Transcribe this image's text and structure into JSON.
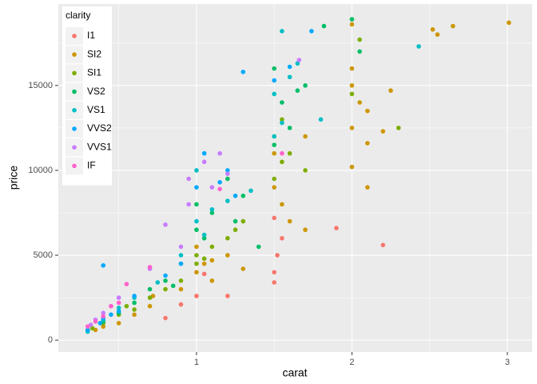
{
  "chart_data": {
    "type": "scatter",
    "x_label": "carat",
    "y_label": "price",
    "legend_title": "clarity",
    "xlim": [
      0.111,
      3.16
    ],
    "ylim": [
      -700,
      19800
    ],
    "xticks": [
      1,
      2,
      3
    ],
    "yticks": [
      0,
      5000,
      10000,
      15000
    ],
    "grid": true,
    "legend_position": "top-left",
    "series": [
      {
        "name": "I1",
        "color": "#F8766D",
        "x": [
          1.5,
          1.5,
          1.52,
          1.55,
          0.9,
          1.2,
          2.2,
          1.9,
          1.0,
          0.8,
          1.5,
          1.05
        ],
        "values": [
          3400,
          4000,
          5000,
          6000,
          2100,
          2600,
          5600,
          6600,
          2600,
          1300,
          7200,
          3900
        ]
      },
      {
        "name": "SI2",
        "color": "#CD9600",
        "x": [
          2.65,
          2.52,
          2.55,
          2.0,
          2.0,
          2.0,
          2.05,
          2.1,
          2.0,
          2.0,
          2.1,
          2.2,
          1.7,
          1.5,
          1.5,
          1.55,
          1.6,
          1.2,
          1.05,
          1.0,
          1.1,
          0.9,
          0.7,
          0.6,
          0.5,
          0.35,
          0.4,
          1.3,
          1.0,
          2.1,
          1.7,
          2.25,
          3.01,
          0.72,
          1.1
        ],
        "values": [
          18500,
          18300,
          18000,
          18600,
          16000,
          15000,
          14000,
          13500,
          12500,
          10200,
          11600,
          12300,
          12000,
          11000,
          9000,
          8000,
          7000,
          5000,
          4500,
          4000,
          3500,
          3000,
          2000,
          1500,
          1000,
          600,
          800,
          4200,
          5500,
          9000,
          6500,
          14700,
          18700,
          2600,
          4700
        ]
      },
      {
        "name": "SI1",
        "color": "#7CAE00",
        "x": [
          2.3,
          2.05,
          1.55,
          1.5,
          1.6,
          1.55,
          1.7,
          1.2,
          1.0,
          1.0,
          1.1,
          0.9,
          0.8,
          0.7,
          0.55,
          0.5,
          0.4,
          0.33,
          1.3,
          1.25,
          2.0,
          1.5,
          0.6,
          1.05
        ],
        "values": [
          12500,
          17700,
          10500,
          9500,
          11000,
          13000,
          10000,
          6000,
          5000,
          4500,
          5500,
          3500,
          3000,
          2500,
          2000,
          1500,
          1000,
          700,
          7000,
          6500,
          14500,
          12000,
          1800,
          4800
        ]
      },
      {
        "name": "VS2",
        "color": "#00BE67",
        "x": [
          2.0,
          1.82,
          2.05,
          1.7,
          1.5,
          1.55,
          1.6,
          1.5,
          1.3,
          1.2,
          1.0,
          1.0,
          1.05,
          0.9,
          0.8,
          0.7,
          0.6,
          0.5,
          0.4,
          0.3,
          1.1,
          1.25,
          1.4,
          1.65,
          0.85
        ],
        "values": [
          18900,
          18500,
          17000,
          15000,
          16000,
          14000,
          12500,
          11500,
          8500,
          9500,
          8000,
          6500,
          6000,
          4500,
          3500,
          3000,
          2200,
          1600,
          1100,
          550,
          7500,
          7000,
          5500,
          14700,
          3200
        ]
      },
      {
        "name": "VS1",
        "color": "#00BFC4",
        "x": [
          1.55,
          1.65,
          1.6,
          1.5,
          1.55,
          1.8,
          1.5,
          1.2,
          1.35,
          1.0,
          1.0,
          1.1,
          0.9,
          0.75,
          0.6,
          0.5,
          0.4,
          0.3,
          1.05,
          2.43
        ],
        "values": [
          18200,
          16300,
          15500,
          14500,
          12800,
          13000,
          12000,
          8200,
          8800,
          10000,
          7000,
          7700,
          5000,
          3400,
          2500,
          1900,
          1200,
          500,
          6200,
          17300
        ]
      },
      {
        "name": "VVS2",
        "color": "#00A9FF",
        "x": [
          1.74,
          1.3,
          1.5,
          1.05,
          1.2,
          1.0,
          1.25,
          0.9,
          0.8,
          0.6,
          0.5,
          0.45,
          0.4,
          0.38,
          0.3,
          1.6,
          0.4,
          1.15
        ],
        "values": [
          18200,
          15800,
          15300,
          11000,
          10000,
          9000,
          8500,
          4500,
          3800,
          2600,
          1700,
          1500,
          1300,
          1000,
          600,
          16100,
          4400,
          9300
        ]
      },
      {
        "name": "VVS1",
        "color": "#C77CFF",
        "x": [
          1.66,
          1.15,
          1.05,
          1.1,
          0.95,
          0.8,
          0.95,
          0.9,
          0.7,
          0.5,
          0.45,
          0.4,
          0.32,
          1.2,
          0.35
        ],
        "values": [
          16500,
          11000,
          10500,
          9000,
          8000,
          6800,
          9500,
          5500,
          4200,
          2500,
          2000,
          1600,
          900,
          9800,
          1200
        ]
      },
      {
        "name": "IF",
        "color": "#FF61CC",
        "x": [
          1.55,
          1.15,
          0.7,
          0.55,
          0.5,
          0.4,
          0.35,
          0.3,
          0.45
        ],
        "values": [
          11000,
          8900,
          4300,
          3300,
          2200,
          1400,
          1100,
          800,
          2000
        ]
      }
    ]
  }
}
